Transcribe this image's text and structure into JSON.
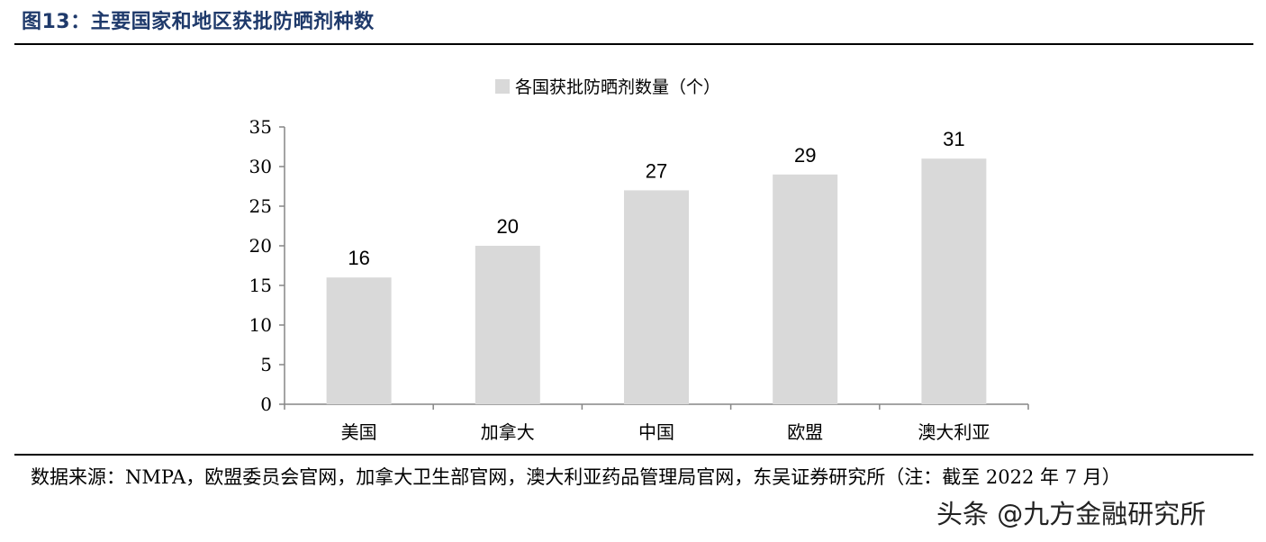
{
  "figure": {
    "title": "图13：主要国家和地区获批防晒剂种数",
    "source": "数据来源：NMPA，欧盟委员会官网，加拿大卫生部官网，澳大利亚药品管理局官网，东吴证券研究所（注：截至 2022 年 7 月）",
    "watermark": "头条 @九方金融研究所"
  },
  "chart_data": {
    "type": "bar",
    "categories": [
      "美国",
      "加拿大",
      "中国",
      "欧盟",
      "澳大利亚"
    ],
    "series": [
      {
        "name": "各国获批防晒剂数量（个）",
        "values": [
          16,
          20,
          27,
          29,
          31
        ]
      }
    ],
    "yticks": [
      "0",
      "5",
      "10",
      "15",
      "20",
      "25",
      "30",
      "35"
    ],
    "ylim": [
      0,
      35
    ],
    "bar_color": "#d9d9d9",
    "data_labels": true,
    "legend_position": "top-center",
    "grid": false
  }
}
